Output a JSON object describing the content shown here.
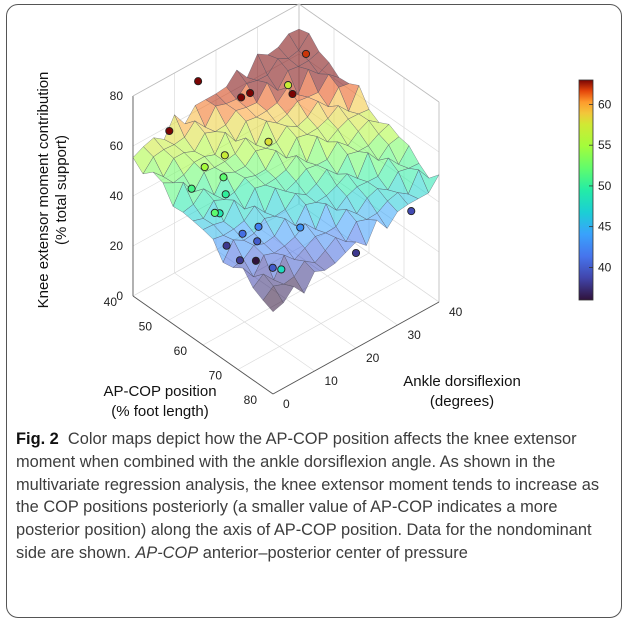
{
  "figure": {
    "label": "Fig. 2",
    "caption_part1": "Color maps depict how the AP-COP position affects the knee extensor moment when combined with the ankle dorsiflexion angle. As shown in the multivariate regression analysis, the knee extensor moment tends to increase as the COP positions posteriorly (a smaller value of AP-COP indicates a more posterior position) along the axis of AP-COP position. Data for the nondominant side are shown. ",
    "caption_abbr": "AP-COP",
    "caption_part2": " anterior–posterior center of pressure"
  },
  "chart_data": {
    "type": "surface3d",
    "zlabel_line1": "Knee extensor moment contribution",
    "zlabel_line2": "(% total support)",
    "xlabel_line1": "AP-COP position",
    "xlabel_line2": "(% foot length)",
    "ylabel_line1": "Ankle dorsiflexion",
    "ylabel_line2": "(degrees)",
    "x_ticks": [
      "40",
      "50",
      "60",
      "70",
      "80"
    ],
    "y_ticks": [
      "0",
      "10",
      "20",
      "30",
      "40"
    ],
    "z_ticks": [
      "0",
      "20",
      "40",
      "60",
      "80"
    ],
    "colorbar_ticks": [
      "40",
      "45",
      "50",
      "55",
      "60"
    ],
    "colorbar_range": [
      36,
      63
    ],
    "colormap": "turbo",
    "x_range": [
      40,
      80
    ],
    "y_range": [
      0,
      40
    ],
    "z_range": [
      0,
      80
    ],
    "points": [
      {
        "x": 48,
        "y": 2,
        "z": 72
      },
      {
        "x": 42,
        "y": 14,
        "z": 75
      },
      {
        "x": 46,
        "y": 21,
        "z": 66
      },
      {
        "x": 45,
        "y": 24,
        "z": 64
      },
      {
        "x": 44,
        "y": 34,
        "z": 57
      },
      {
        "x": 42,
        "y": 40,
        "z": 62
      },
      {
        "x": 50,
        "y": 30,
        "z": 63
      },
      {
        "x": 55,
        "y": 20,
        "z": 58
      },
      {
        "x": 52,
        "y": 12,
        "z": 57
      },
      {
        "x": 51,
        "y": 8,
        "z": 55
      },
      {
        "x": 54,
        "y": 10,
        "z": 52
      },
      {
        "x": 57,
        "y": 8,
        "z": 50
      },
      {
        "x": 60,
        "y": 4,
        "z": 49
      },
      {
        "x": 61,
        "y": 2,
        "z": 52
      },
      {
        "x": 52,
        "y": 4,
        "z": 51
      },
      {
        "x": 70,
        "y": 15,
        "z": 43
      },
      {
        "x": 64,
        "y": 10,
        "z": 42
      },
      {
        "x": 66,
        "y": 8,
        "z": 40
      },
      {
        "x": 63,
        "y": 7,
        "z": 41
      },
      {
        "x": 67,
        "y": 3,
        "z": 38
      },
      {
        "x": 74,
        "y": 5,
        "z": 40
      },
      {
        "x": 68,
        "y": 6,
        "z": 36
      },
      {
        "x": 62,
        "y": 4,
        "z": 38
      },
      {
        "x": 80,
        "y": 2,
        "z": 48
      },
      {
        "x": 80,
        "y": 20,
        "z": 38
      },
      {
        "x": 78,
        "y": 35,
        "z": 39
      }
    ]
  }
}
